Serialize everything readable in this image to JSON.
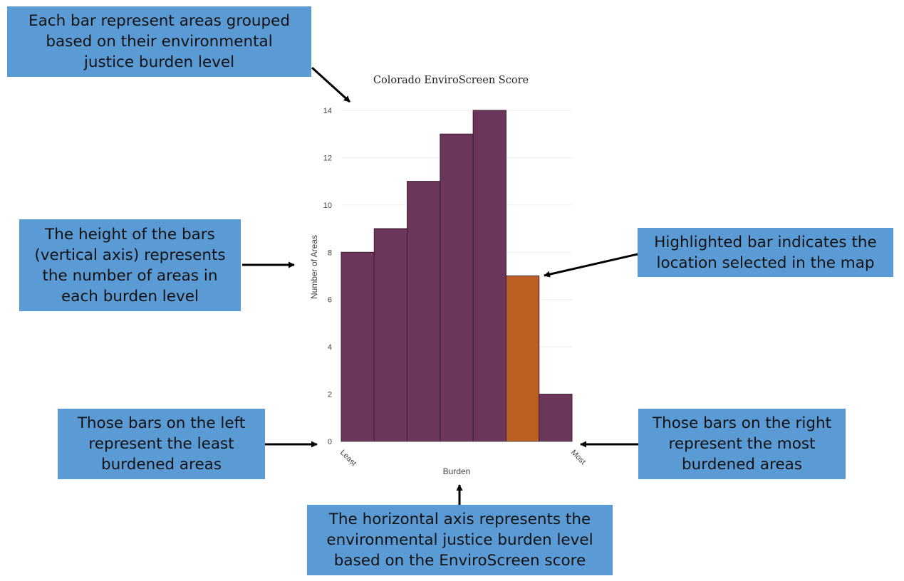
{
  "callouts": {
    "bars_grouped": [
      "Each bar represent areas grouped",
      "based on their environmental",
      "justice burden level"
    ],
    "bar_height": [
      "The height of the bars",
      "(vertical axis) represents",
      "the number of  areas in",
      "each burden level"
    ],
    "highlighted": [
      "Highlighted bar indicates the",
      "location selected in the map"
    ],
    "left_bars": [
      "Those bars on the left",
      "represent the least",
      "burdened areas"
    ],
    "right_bars": [
      "Those bars on the right",
      "represent the most",
      "burdened areas"
    ],
    "horizontal_axis": [
      "The horizontal axis represents the",
      "environmental justice burden level",
      "based on the EnviroScreen score"
    ]
  },
  "colors": {
    "callout_bg": "#5b9bd5",
    "bar": "#6b3659",
    "bar_highlight": "#bd5f22",
    "bar_stroke": "#3e1f33",
    "grid": "#ececec"
  },
  "chart_data": {
    "type": "bar",
    "title": "Colorado EnviroScreen Score",
    "xlabel": "Burden",
    "ylabel": "Number of Areas",
    "x_tick_labels": [
      "Least",
      "Most"
    ],
    "values": [
      8,
      9,
      11,
      13,
      14,
      7,
      2
    ],
    "highlighted_index": 5,
    "yticks": [
      0,
      2,
      4,
      6,
      8,
      10,
      12,
      14
    ],
    "ylim": [
      0,
      14
    ],
    "grid": true,
    "legend": "none"
  }
}
